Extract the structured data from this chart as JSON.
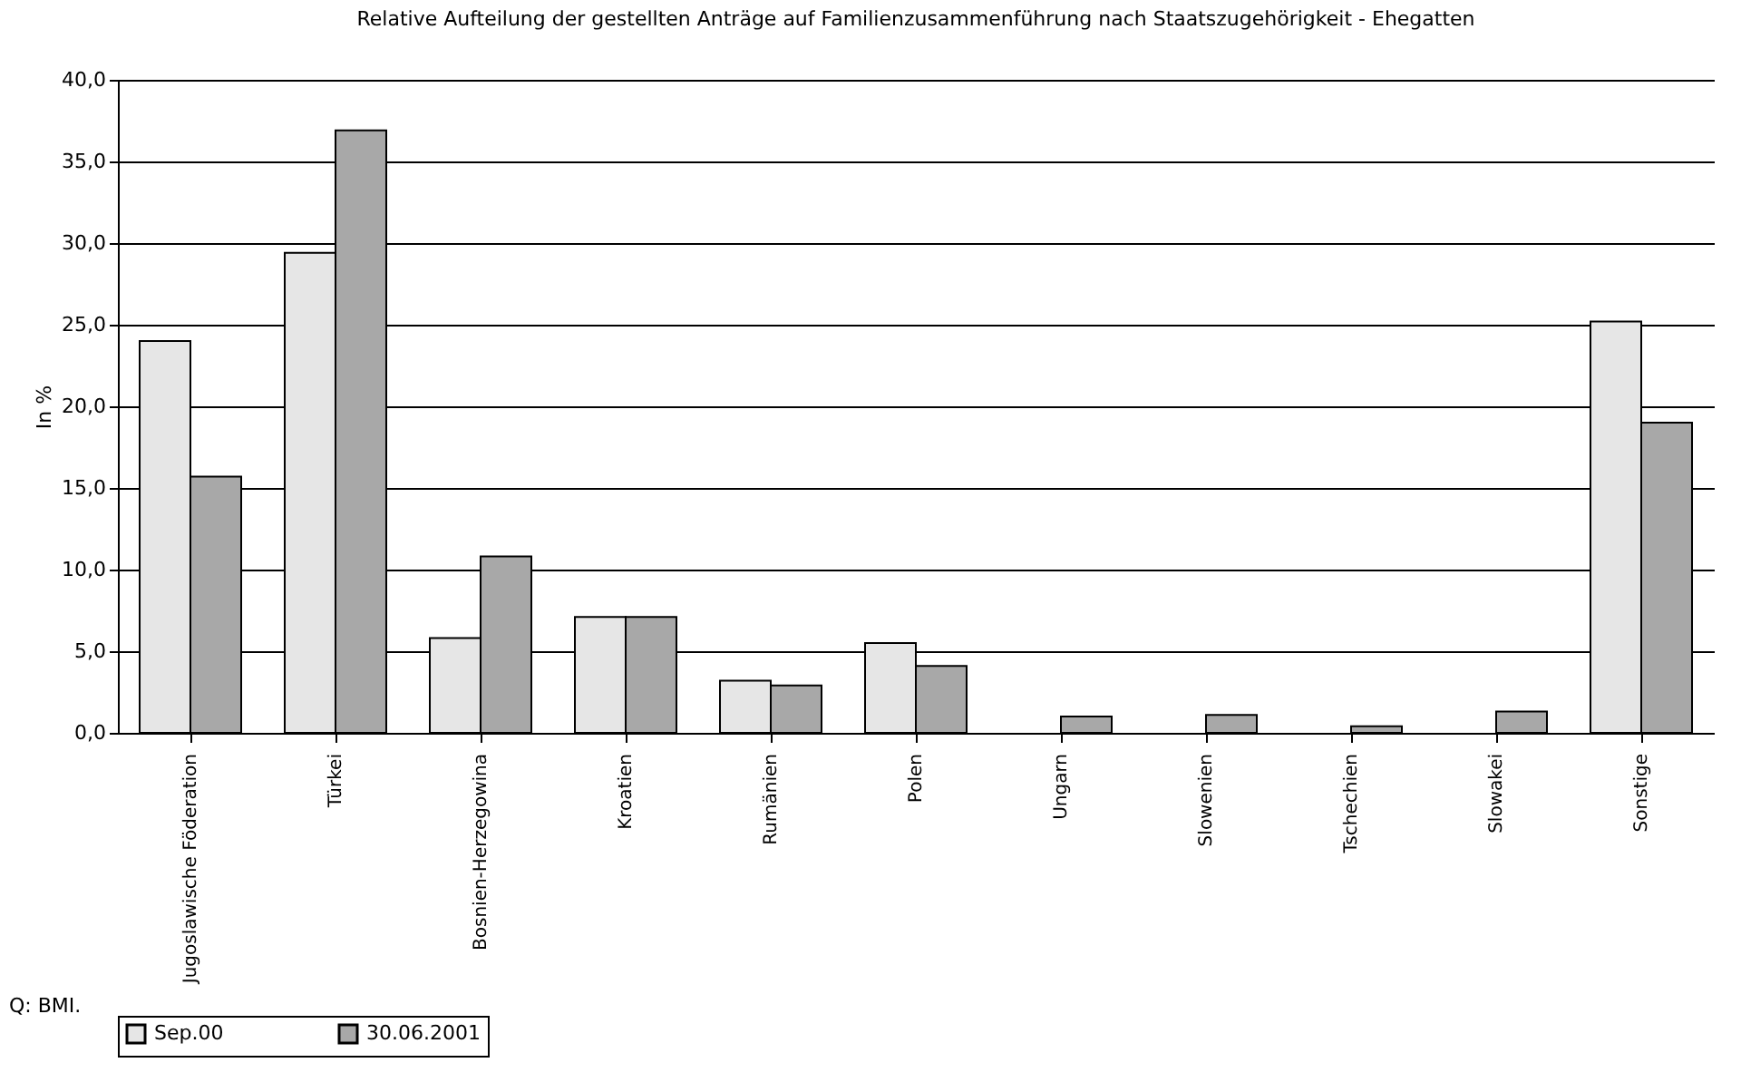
{
  "chart_data": {
    "type": "bar",
    "title": "Relative Aufteilung der gestellten Anträge auf Familienzusammenführung nach Staatszugehörigkeit - Ehegatten",
    "ylabel": "In %",
    "categories": [
      "Jugoslawische Föderation",
      "Türkei",
      "Bosnien-Herzegowina",
      "Kroatien",
      "Rumänien",
      "Polen",
      "Ungarn",
      "Slowenien",
      "Tschechien",
      "Slowakei",
      "Sonstige"
    ],
    "series": [
      {
        "name": "Sep.00",
        "color": "#e6e6e6",
        "values": [
          24.0,
          29.4,
          5.8,
          7.1,
          3.2,
          5.5,
          null,
          null,
          null,
          null,
          25.2
        ]
      },
      {
        "name": "30.06.2001",
        "color": "#a8a8a8",
        "values": [
          15.7,
          36.9,
          10.8,
          7.1,
          2.9,
          4.1,
          1.0,
          1.1,
          0.4,
          1.3,
          19.0
        ]
      }
    ],
    "ylim": [
      0,
      40
    ],
    "yticks": [
      {
        "value": 0,
        "label": "0,0"
      },
      {
        "value": 5,
        "label": "5,0"
      },
      {
        "value": 10,
        "label": "10,0"
      },
      {
        "value": 15,
        "label": "15,0"
      },
      {
        "value": 20,
        "label": "20,0"
      },
      {
        "value": 25,
        "label": "25,0"
      },
      {
        "value": 30,
        "label": "30,0"
      },
      {
        "value": 35,
        "label": "35,0"
      },
      {
        "value": 40,
        "label": "40,0"
      }
    ],
    "grid": "y",
    "legend": "bottom",
    "annotations": [
      "Q: BMI."
    ]
  }
}
